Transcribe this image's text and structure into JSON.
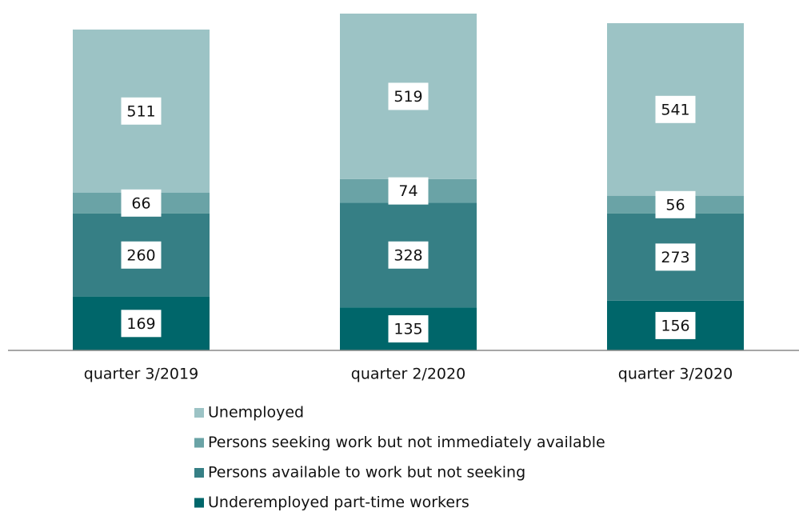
{
  "chart_data": {
    "type": "stacked_bar",
    "categories": [
      "quarter 3/2019",
      "quarter 2/2020",
      "quarter 3/2020"
    ],
    "series": [
      {
        "name": "Underemployed part-time workers",
        "color": "#00666a",
        "values": [
          169,
          135,
          156
        ]
      },
      {
        "name": "Persons available to work but not seeking",
        "color": "#367f85",
        "values": [
          260,
          328,
          273
        ]
      },
      {
        "name": "Persons seeking work but not immediately available",
        "color": "#6aa3a6",
        "values": [
          66,
          74,
          56
        ]
      },
      {
        "name": "Unemployed",
        "color": "#9cc3c5",
        "values": [
          511,
          519,
          541
        ]
      }
    ]
  }
}
